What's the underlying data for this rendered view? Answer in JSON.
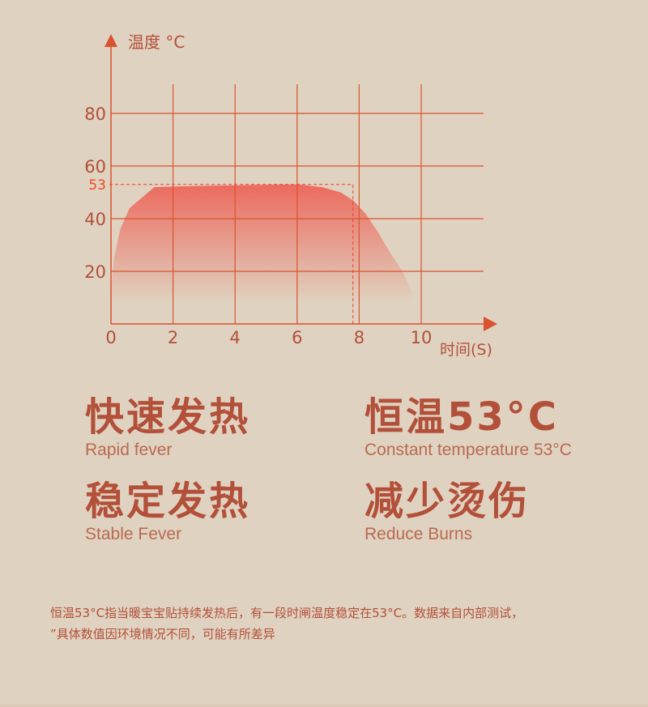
{
  "chart_data": {
    "type": "area",
    "ylabel": "温度 °C",
    "xlabel": "时间(S)",
    "xlim": [
      0,
      12
    ],
    "ylim": [
      0,
      92
    ],
    "x_ticks": [
      "0",
      "2",
      "4",
      "6",
      "8",
      "10"
    ],
    "y_ticks": [
      "80",
      "60",
      "40",
      "20"
    ],
    "grid": true,
    "annotation": {
      "label": "53",
      "y": 53,
      "x_end": 7.8
    },
    "series": [
      {
        "x": [
          0,
          0.1,
          0.3,
          0.6,
          1.0,
          1.4,
          3,
          6,
          6.8,
          7.4,
          7.8,
          8.2,
          8.6,
          9.0,
          9.4,
          9.7
        ],
        "values": [
          12,
          25,
          36,
          44,
          48,
          52,
          52.5,
          53,
          52,
          50,
          47,
          42,
          35,
          27,
          20,
          12
        ]
      }
    ],
    "colors": {
      "axis": "#d9532e",
      "fill": "#ec6a5e",
      "dashed": "#f03a2a",
      "label53": "#f04a22"
    }
  },
  "features": [
    {
      "zh": "快速发热",
      "en": "Rapid fever"
    },
    {
      "zh": "恒温53°C",
      "en": "Constant temperature 53°C"
    },
    {
      "zh": "稳定发热",
      "en": "Stable Fever"
    },
    {
      "zh": "减少烫伤",
      "en": "Reduce Burns"
    }
  ],
  "note": {
    "line1": "恒温53°C指当暖宝宝贴持续发热后，有一段时闸温度稳定在53°C。数据来自内部测试，",
    "line2": "”具体数值因环境情况不同，可能有所差异"
  }
}
